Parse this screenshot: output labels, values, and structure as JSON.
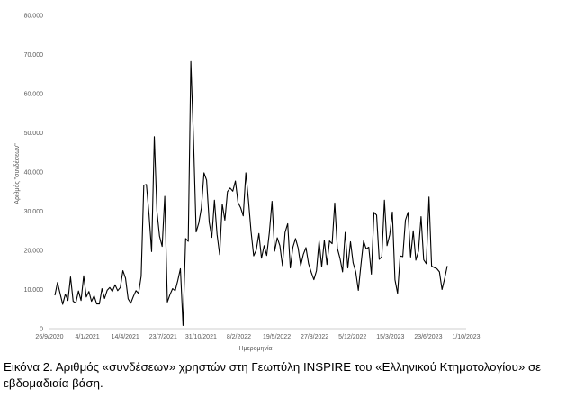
{
  "caption": "Εικόνα 2. Αριθμός «συνδέσεων» χρηστών στη Γεωπύλη INSPIRE του «Ελληνικού Κτηματολογίου» σε εβδομαδιαία βάση.",
  "chart_data": {
    "type": "line",
    "title": "",
    "xlabel": "Ημερομηνία",
    "ylabel": "Αριθμός \"συνδέσεων\"",
    "ylim": [
      0,
      80000
    ],
    "xlim": [
      "2020-09-26",
      "2023-10-01"
    ],
    "yticks": [
      "0",
      "10.000",
      "20.000",
      "30.000",
      "40.000",
      "50.000",
      "60.000",
      "70.000",
      "80.000"
    ],
    "xticks": [
      "26/9/2020",
      "4/1/2021",
      "14/4/2021",
      "23/7/2021",
      "31/10/2021",
      "8/2/2022",
      "19/5/2022",
      "27/8/2022",
      "5/12/2022",
      "15/3/2023",
      "23/6/2023",
      "1/10/2023"
    ],
    "grid": false,
    "legend": "none",
    "line_color": "#000000",
    "series": [
      {
        "values": [
          8500,
          11800,
          9000,
          6200,
          8800,
          7200,
          13200,
          7000,
          6600,
          9600,
          7200,
          13500,
          8100,
          9500,
          7000,
          8400,
          6300,
          6300,
          10200,
          7700,
          9800,
          10500,
          9500,
          11200,
          9700,
          10500,
          14800,
          12900,
          7600,
          6500,
          8200,
          9700,
          9000,
          13400,
          36600,
          36800,
          29200,
          19700,
          49000,
          30000,
          23600,
          21000,
          33800,
          6800,
          8700,
          10200,
          9700,
          12300,
          15300,
          800,
          23000,
          22300,
          68200,
          48000,
          24700,
          27000,
          30800,
          39800,
          37900,
          27200,
          23300,
          32800,
          24100,
          18900,
          31800,
          27700,
          35000,
          35900,
          35100,
          37700,
          32200,
          30900,
          28800,
          39800,
          32800,
          24800,
          18600,
          20100,
          24300,
          18000,
          21200,
          18700,
          24500,
          32500,
          19800,
          23200,
          21200,
          16100,
          24600,
          26800,
          15500,
          20800,
          23000,
          20600,
          16100,
          19000,
          20700,
          16600,
          14400,
          12500,
          14800,
          22400,
          15800,
          22600,
          16400,
          22400,
          21700,
          32100,
          20500,
          18000,
          14500,
          24600,
          15500,
          22200,
          16800,
          14500,
          9800,
          16300,
          22400,
          20400,
          20800,
          13900,
          29700,
          29000,
          17700,
          18400,
          32800,
          21200,
          24000,
          29800,
          12500,
          9000,
          18600,
          18400,
          27700,
          29700,
          18300,
          25000,
          17500,
          19800,
          28600,
          17600,
          16600,
          33600,
          16000,
          15600,
          15300,
          14500,
          10000,
          12800,
          16000
        ]
      }
    ]
  }
}
